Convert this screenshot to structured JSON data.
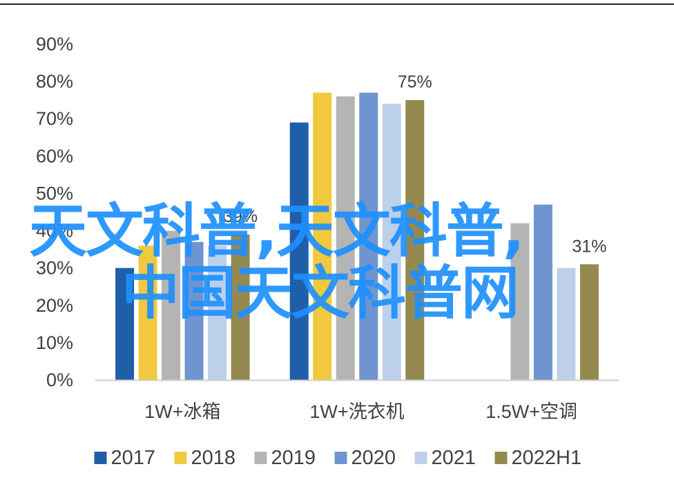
{
  "chart_data": {
    "type": "bar",
    "categories": [
      "1W+冰箱",
      "1W+洗衣机",
      "1.5W+空调"
    ],
    "series": [
      {
        "name": "2017",
        "color": "#1f5ea8",
        "values": [
          30,
          69,
          null
        ]
      },
      {
        "name": "2018",
        "color": "#f0c93e",
        "values": [
          36,
          77,
          null
        ]
      },
      {
        "name": "2019",
        "color": "#b4b4b4",
        "values": [
          40,
          76,
          42
        ]
      },
      {
        "name": "2020",
        "color": "#6f94cf",
        "values": [
          37,
          77,
          47
        ]
      },
      {
        "name": "2021",
        "color": "#bdd0ea",
        "values": [
          36,
          74,
          30
        ]
      },
      {
        "name": "2022H1",
        "color": "#948a50",
        "values": [
          39,
          75,
          31
        ]
      }
    ],
    "data_labels": [
      {
        "category_index": 0,
        "text": "39%"
      },
      {
        "category_index": 1,
        "text": "75%"
      },
      {
        "category_index": 2,
        "text": "31%"
      }
    ],
    "ylim": [
      0,
      90
    ],
    "yticks": [
      "0%",
      "10%",
      "20%",
      "30%",
      "40%",
      "50%",
      "60%",
      "70%",
      "80%",
      "90%"
    ],
    "ytick_values": [
      0,
      10,
      20,
      30,
      40,
      50,
      60,
      70,
      80,
      90
    ],
    "grid": false,
    "legend_position": "bottom",
    "title": "",
    "xlabel": "",
    "ylabel": ""
  },
  "watermark": {
    "line1": "天文科普,天文科普,",
    "line2": "中国天文科普网",
    "color": "#1e90ff"
  }
}
